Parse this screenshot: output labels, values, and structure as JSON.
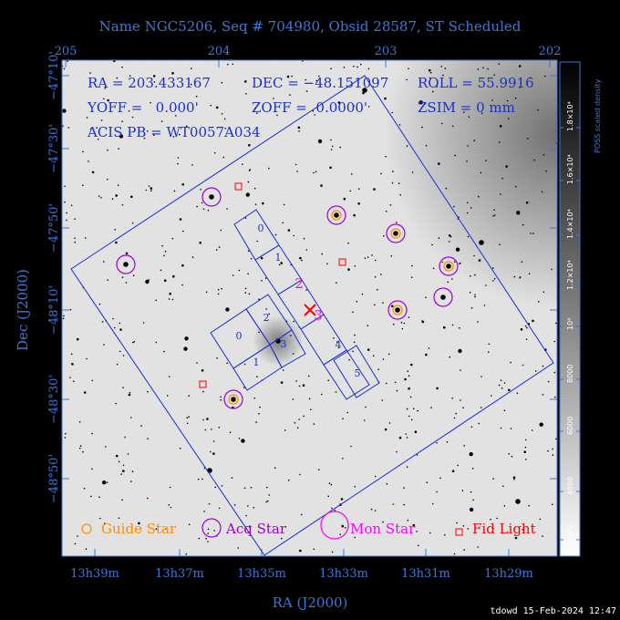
{
  "title": "Name NGC5206, Seq # 704980, Obsid 28587, ST Scheduled",
  "info": {
    "line1": [
      "RA = 203.433167",
      "DEC = −48.151097",
      "ROLL = 55.9916"
    ],
    "line2": [
      "YOFF =   0.000'",
      "ZOFF =  0.0000'",
      "ZSIM = 0 mm"
    ],
    "line3": "ACIS PB = WT0057A034"
  },
  "axes": {
    "xlabel": "RA (J2000)",
    "ylabel": "Dec (J2000)",
    "top_ticks": [
      "205",
      "204",
      "203",
      "202"
    ],
    "bottom_ticks": [
      "13h39m",
      "13h37m",
      "13h35m",
      "13h33m",
      "13h31m",
      "13h29m"
    ],
    "left_ticks": [
      "−47°10'",
      "−47°30'",
      "−47°50'",
      "−48°10'",
      "−48°30'",
      "−48°50'"
    ]
  },
  "colorbar": {
    "label": "POSS scaled density",
    "ticks": [
      "2000",
      "4000",
      "6000",
      "8000",
      "10⁴",
      "1.2×10⁴",
      "1.4×10⁴",
      "1.6×10⁴",
      "1.8×10⁴"
    ]
  },
  "chips": {
    "i": [
      "0",
      "2",
      "1",
      "3"
    ],
    "s": [
      "0",
      "1",
      "2",
      "3",
      "4",
      "5"
    ]
  },
  "legend": {
    "guide": "Guide Star",
    "acq": "Acq Star",
    "mon": "Mon Star",
    "fid": "Fid Light"
  },
  "colors": {
    "guide": "#ff8c00",
    "acq": "#9a00d8",
    "mon": "#ff00ff",
    "fid": "#ff0000",
    "detector": "#1a2fd0",
    "axis": "#3b78d8"
  },
  "footer": "tdowd 15-Feb-2024 12:47"
}
